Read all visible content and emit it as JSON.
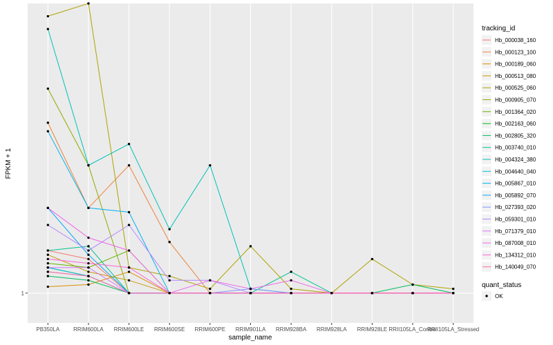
{
  "chart_data": {
    "type": "line",
    "title": "",
    "xlabel": "sample_name",
    "ylabel": "FPKM + 1",
    "y_tick_labels": [
      "1"
    ],
    "y_tick_values": [
      1
    ],
    "ylim": [
      0.93,
      1.68
    ],
    "categories": [
      "PB350LA",
      "RRIM600LA",
      "RRIM600LE",
      "RRIM600SE",
      "RRIM600PE",
      "RRIM901LA",
      "RRIM928BA",
      "RRIM928LA",
      "RRIM928LE",
      "RRII105LA_Control",
      "RRII105LA_Stressed"
    ],
    "legend": {
      "title": "tracking_id",
      "placement": "right"
    },
    "shape_legend": {
      "title": "quant_status",
      "entries": [
        "OK"
      ]
    },
    "series": [
      {
        "name": "Hb_000038_160",
        "color": "#F8766D",
        "values": [
          1.1,
          1.08,
          1.0,
          1.0,
          1.0,
          1.0,
          1.0,
          1.0,
          1.0,
          1.0,
          1.0
        ]
      },
      {
        "name": "Hb_000123_100",
        "color": "#EC8239",
        "values": [
          1.4,
          1.2,
          1.3,
          1.12,
          1.0,
          1.0,
          1.0,
          1.0,
          1.0,
          1.0,
          1.0
        ]
      },
      {
        "name": "Hb_000189_060",
        "color": "#DB8E00",
        "values": [
          1.015,
          1.02,
          1.05,
          1.0,
          1.0,
          1.0,
          1.0,
          1.0,
          1.0,
          1.0,
          1.0
        ]
      },
      {
        "name": "Hb_000513_080",
        "color": "#C79800",
        "values": [
          1.09,
          1.05,
          1.03,
          1.0,
          1.0,
          1.0,
          1.0,
          1.0,
          1.0,
          1.0,
          1.0
        ]
      },
      {
        "name": "Hb_000525_060",
        "color": "#AEA200",
        "values": [
          1.65,
          1.68,
          1.06,
          1.04,
          1.01,
          1.11,
          1.01,
          1.0,
          1.08,
          1.02,
          1.01
        ]
      },
      {
        "name": "Hb_000905_070",
        "color": "#8FAA00",
        "values": [
          1.48,
          1.3,
          1.0,
          1.0,
          1.0,
          1.0,
          1.0,
          1.0,
          1.0,
          1.0,
          1.0
        ]
      },
      {
        "name": "Hb_001364_020",
        "color": "#64B200",
        "values": [
          1.07,
          1.06,
          1.1,
          1.0,
          1.0,
          1.0,
          1.0,
          1.0,
          1.0,
          1.0,
          1.0
        ]
      },
      {
        "name": "Hb_002163_060",
        "color": "#00B81B",
        "values": [
          1.06,
          1.04,
          1.0,
          1.0,
          1.0,
          1.0,
          1.0,
          1.0,
          1.0,
          1.0,
          1.0
        ]
      },
      {
        "name": "Hb_002805_320",
        "color": "#00BD5C",
        "values": [
          1.04,
          1.03,
          1.0,
          1.0,
          1.0,
          1.0,
          1.0,
          1.0,
          1.0,
          1.02,
          1.0
        ]
      },
      {
        "name": "Hb_003740_010",
        "color": "#00C08E",
        "values": [
          1.1,
          1.11,
          1.0,
          1.0,
          1.0,
          1.0,
          1.05,
          1.0,
          1.0,
          1.0,
          1.0
        ]
      },
      {
        "name": "Hb_004324_380",
        "color": "#00C1B7",
        "values": [
          1.62,
          1.3,
          1.35,
          1.15,
          1.3,
          1.01,
          1.0,
          1.0,
          1.0,
          1.0,
          1.0
        ]
      },
      {
        "name": "Hb_004640_040",
        "color": "#00BDDC",
        "values": [
          1.06,
          1.04,
          1.0,
          1.0,
          1.0,
          1.0,
          1.0,
          1.0,
          1.0,
          1.0,
          1.0
        ]
      },
      {
        "name": "Hb_005867_010",
        "color": "#00B2F3",
        "values": [
          1.38,
          1.2,
          1.19,
          1.0,
          1.0,
          1.0,
          1.0,
          1.0,
          1.0,
          1.0,
          1.0
        ]
      },
      {
        "name": "Hb_005892_070",
        "color": "#00A6FF",
        "values": [
          1.2,
          1.09,
          1.0,
          1.0,
          1.0,
          1.0,
          1.0,
          1.0,
          1.0,
          1.0,
          1.0
        ]
      },
      {
        "name": "Hb_027393_020",
        "color": "#7C96FF",
        "values": [
          1.05,
          1.04,
          1.0,
          1.0,
          1.0,
          1.01,
          1.0,
          1.0,
          1.0,
          1.0,
          1.0
        ]
      },
      {
        "name": "Hb_059301_010",
        "color": "#B385FF",
        "values": [
          1.16,
          1.1,
          1.16,
          1.03,
          1.03,
          1.0,
          1.0,
          1.0,
          1.0,
          1.0,
          1.0
        ]
      },
      {
        "name": "Hb_071379_010",
        "color": "#D774FD",
        "values": [
          1.06,
          1.06,
          1.0,
          1.0,
          1.0,
          1.0,
          1.0,
          1.0,
          1.0,
          1.0,
          1.0
        ]
      },
      {
        "name": "Hb_087008_010",
        "color": "#EF67EB",
        "values": [
          1.2,
          1.13,
          1.1,
          1.0,
          1.03,
          1.01,
          1.03,
          1.0,
          1.0,
          1.0,
          1.0
        ]
      },
      {
        "name": "Hb_134312_010",
        "color": "#FD61D3",
        "values": [
          1.08,
          1.07,
          1.06,
          1.0,
          1.0,
          1.0,
          1.0,
          1.0,
          1.0,
          1.0,
          1.0
        ]
      },
      {
        "name": "Hb_140049_070",
        "color": "#FF689F",
        "values": [
          1.05,
          1.04,
          1.0,
          1.0,
          1.0,
          1.0,
          1.0,
          1.0,
          1.0,
          1.0,
          1.0
        ]
      }
    ]
  }
}
